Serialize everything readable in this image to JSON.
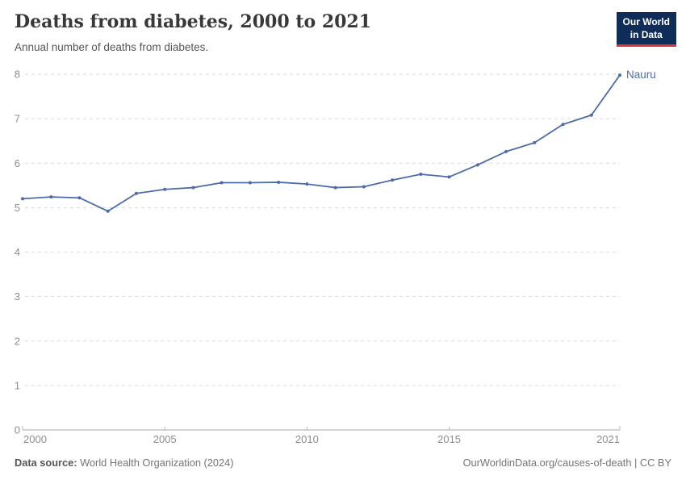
{
  "header": {
    "title": "Deaths from diabetes, 2000 to 2021",
    "subtitle": "Annual number of deaths from diabetes."
  },
  "logo": {
    "line1": "Our World",
    "line2": "in Data"
  },
  "chart_data": {
    "type": "line",
    "title": "Deaths from diabetes, 2000 to 2021",
    "subtitle": "Annual number of deaths from diabetes.",
    "x": [
      2000,
      2001,
      2002,
      2003,
      2004,
      2005,
      2006,
      2007,
      2008,
      2009,
      2010,
      2011,
      2012,
      2013,
      2014,
      2015,
      2016,
      2017,
      2018,
      2019,
      2020,
      2021
    ],
    "series": [
      {
        "name": "Nauru",
        "color": "#4C6CA8",
        "values": [
          5.2,
          5.24,
          5.22,
          4.92,
          5.32,
          5.41,
          5.45,
          5.56,
          5.56,
          5.57,
          5.53,
          5.45,
          5.47,
          5.62,
          5.75,
          5.69,
          5.96,
          6.26,
          6.46,
          6.87,
          7.08,
          7.98
        ]
      }
    ],
    "xlabel": "",
    "ylabel": "",
    "ylim": [
      0,
      8
    ],
    "yticks": [
      0,
      1,
      2,
      3,
      4,
      5,
      6,
      7,
      8
    ],
    "xticks": [
      2000,
      2005,
      2010,
      2015,
      2021
    ],
    "grid": "horizontal-dashed",
    "legend_position": "line-end-label",
    "colors": {
      "grid": "#dadada",
      "axis": "#a6a6a6",
      "tick_label": "#8d8d8d"
    }
  },
  "footer": {
    "source_label": "Data source:",
    "source_value": "World Health Organization (2024)",
    "credit": "OurWorldinData.org/causes-of-death | CC BY"
  }
}
